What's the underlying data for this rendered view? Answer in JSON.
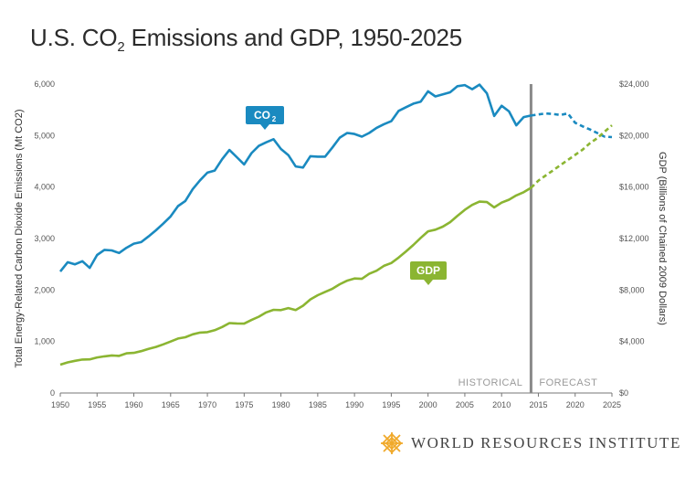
{
  "title": {
    "prefix": "U.S. CO",
    "subscript": "2",
    "suffix": " Emissions and GDP, 1950-2025"
  },
  "logo": {
    "text": "WORLD RESOURCES INSTITUTE",
    "icon": "wri-lattice-logo"
  },
  "colors": {
    "co2": "#1a8ac0",
    "gdp": "#8bb532",
    "divider": "#8a8a8a",
    "logo": "#f0a92a"
  },
  "chart_data": {
    "type": "line",
    "title": "U.S. CO2 Emissions and GDP, 1950-2025",
    "xlabel": "",
    "x_ticks": [
      1950,
      1955,
      1960,
      1965,
      1970,
      1975,
      1980,
      1985,
      1990,
      1995,
      2000,
      2005,
      2010,
      2015,
      2020,
      2025
    ],
    "xlim": [
      1950,
      2025
    ],
    "y_left": {
      "label": "Total Energy-Related Carbon Dioxide Emissions (Mt CO2)",
      "ylim": [
        0,
        6000
      ],
      "tick_labels": [
        "0",
        "1,000",
        "2,000",
        "3,000",
        "4,000",
        "5,000",
        "6,000"
      ]
    },
    "y_right": {
      "label": "GDP (Billions of Chained 2009 Dollars)",
      "ylim": [
        0,
        24000
      ],
      "tick_labels": [
        "$0",
        "$4,000",
        "$8,000",
        "$12,000",
        "$16,000",
        "$20,000",
        "$24,000"
      ]
    },
    "divider_year": 2014,
    "region_labels": [
      "HISTORICAL",
      "FORECAST"
    ],
    "series": [
      {
        "name": "CO2",
        "axis": "left",
        "historical": {
          "x": [
            1950,
            1951,
            1952,
            1953,
            1954,
            1955,
            1956,
            1957,
            1958,
            1959,
            1960,
            1961,
            1962,
            1963,
            1964,
            1965,
            1966,
            1967,
            1968,
            1969,
            1970,
            1971,
            1972,
            1973,
            1974,
            1975,
            1976,
            1977,
            1978,
            1979,
            1980,
            1981,
            1982,
            1983,
            1984,
            1985,
            1986,
            1987,
            1988,
            1989,
            1990,
            1991,
            1992,
            1993,
            1994,
            1995,
            1996,
            1997,
            1998,
            1999,
            2000,
            2001,
            2002,
            2003,
            2004,
            2005,
            2006,
            2007,
            2008,
            2009,
            2010,
            2011,
            2012,
            2013,
            2014
          ],
          "values": [
            2360,
            2540,
            2500,
            2560,
            2430,
            2680,
            2780,
            2770,
            2720,
            2820,
            2900,
            2930,
            3040,
            3160,
            3290,
            3430,
            3630,
            3730,
            3960,
            4130,
            4280,
            4320,
            4540,
            4720,
            4580,
            4440,
            4660,
            4800,
            4870,
            4930,
            4740,
            4620,
            4400,
            4380,
            4600,
            4590,
            4590,
            4770,
            4960,
            5050,
            5030,
            4980,
            5050,
            5150,
            5220,
            5280,
            5480,
            5550,
            5620,
            5660,
            5860,
            5760,
            5800,
            5840,
            5960,
            5980,
            5900,
            5990,
            5820,
            5380,
            5580,
            5470,
            5200,
            5360,
            5390
          ]
        },
        "forecast": {
          "x": [
            2014,
            2015,
            2016,
            2017,
            2018,
            2019,
            2020,
            2021,
            2022,
            2023,
            2024,
            2025
          ],
          "values": [
            5390,
            5410,
            5430,
            5420,
            5400,
            5430,
            5250,
            5180,
            5120,
            5050,
            4980,
            4970
          ]
        },
        "label": "CO2"
      },
      {
        "name": "GDP",
        "axis": "right",
        "historical": {
          "x": [
            1950,
            1951,
            1952,
            1953,
            1954,
            1955,
            1956,
            1957,
            1958,
            1959,
            1960,
            1961,
            1962,
            1963,
            1964,
            1965,
            1966,
            1967,
            1968,
            1969,
            1970,
            1971,
            1972,
            1973,
            1974,
            1975,
            1976,
            1977,
            1978,
            1979,
            1980,
            1981,
            1982,
            1983,
            1984,
            1985,
            1986,
            1987,
            1988,
            1989,
            1990,
            1991,
            1992,
            1993,
            1994,
            1995,
            1996,
            1997,
            1998,
            1999,
            2000,
            2001,
            2002,
            2003,
            2004,
            2005,
            2006,
            2007,
            2008,
            2009,
            2010,
            2011,
            2012,
            2013,
            2014
          ],
          "values": [
            2200,
            2380,
            2500,
            2600,
            2610,
            2760,
            2850,
            2920,
            2880,
            3080,
            3120,
            3250,
            3430,
            3580,
            3780,
            4000,
            4230,
            4330,
            4560,
            4690,
            4730,
            4880,
            5130,
            5430,
            5400,
            5390,
            5670,
            5930,
            6260,
            6460,
            6440,
            6600,
            6450,
            6780,
            7270,
            7600,
            7850,
            8100,
            8450,
            8730,
            8900,
            8870,
            9260,
            9500,
            9880,
            10100,
            10520,
            11000,
            11500,
            12050,
            12560,
            12690,
            12920,
            13270,
            13770,
            14230,
            14610,
            14870,
            14830,
            14420,
            14790,
            15020,
            15350,
            15600,
            15940
          ]
        },
        "forecast": {
          "x": [
            2014,
            2015,
            2016,
            2017,
            2018,
            2019,
            2020,
            2021,
            2022,
            2023,
            2024,
            2025
          ],
          "values": [
            15940,
            16500,
            16900,
            17300,
            17700,
            18100,
            18500,
            18900,
            19400,
            19800,
            20300,
            20800
          ]
        },
        "label": "GDP"
      }
    ],
    "grid": false,
    "legend": "inline-labels"
  }
}
